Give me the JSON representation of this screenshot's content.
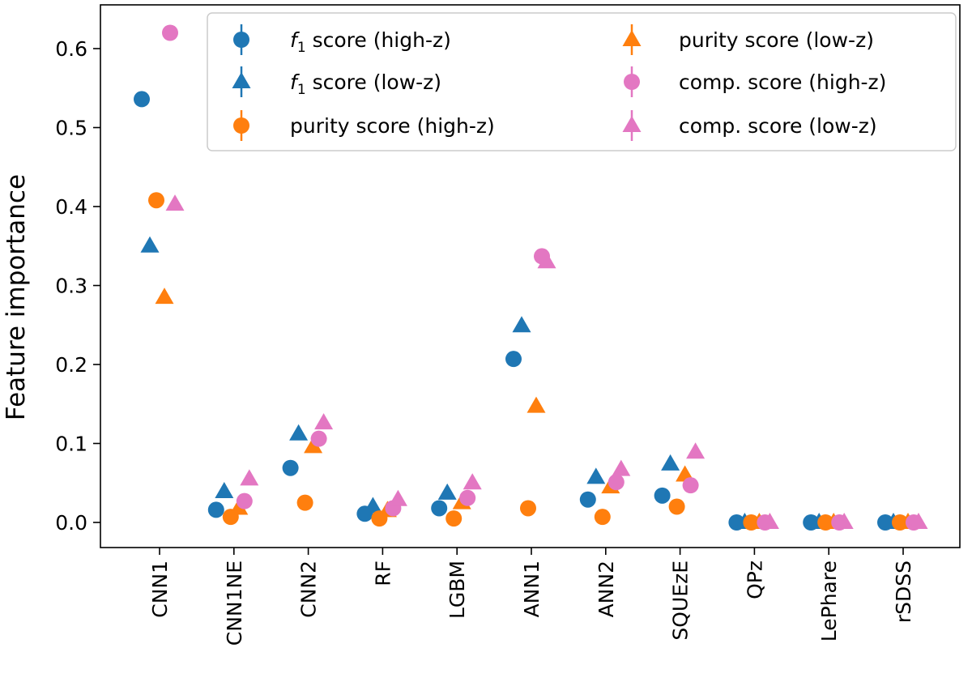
{
  "chart_data": {
    "type": "scatter",
    "title": "",
    "xlabel": "",
    "ylabel": "Feature importance",
    "categories": [
      "CNN1",
      "CNN1NE",
      "CNN2",
      "RF",
      "LGBM",
      "ANN1",
      "ANN2",
      "SQUEzE",
      "QPz",
      "LePhare",
      "rSDSS"
    ],
    "ylim": [
      -0.04,
      0.65
    ],
    "yticks": [
      "0.0",
      "0.1",
      "0.2",
      "0.3",
      "0.4",
      "0.5",
      "0.6"
    ],
    "ytick_values": [
      0.0,
      0.1,
      0.2,
      0.3,
      0.4,
      0.5,
      0.6
    ],
    "grid": false,
    "legend_position": "top-right",
    "series": [
      {
        "name": "score (high-z)",
        "prefix": "f",
        "subscript": "1",
        "marker": "circle",
        "color": "#1f77b4",
        "values": [
          0.536,
          0.016,
          0.069,
          0.011,
          0.018,
          0.207,
          0.029,
          0.034,
          0.0,
          0.0,
          0.0
        ]
      },
      {
        "name": "score (low-z)",
        "prefix": "f",
        "subscript": "1",
        "marker": "triangle",
        "color": "#1f77b4",
        "values": [
          0.35,
          0.039,
          0.112,
          0.02,
          0.037,
          0.249,
          0.057,
          0.074,
          0.0,
          0.0,
          0.0
        ]
      },
      {
        "name": "purity score (high-z)",
        "marker": "circle",
        "color": "#ff7f0e",
        "values": [
          0.408,
          0.007,
          0.025,
          0.005,
          0.005,
          0.018,
          0.007,
          0.02,
          0.0,
          0.0,
          0.0
        ]
      },
      {
        "name": "purity score (low-z)",
        "marker": "triangle",
        "color": "#ff7f0e",
        "values": [
          0.285,
          0.018,
          0.096,
          0.015,
          0.025,
          0.147,
          0.045,
          0.06,
          0.0,
          0.0,
          0.0
        ]
      },
      {
        "name": "comp. score (high-z)",
        "marker": "circle",
        "color": "#e377c2",
        "values": [
          0.62,
          0.027,
          0.106,
          0.018,
          0.031,
          0.337,
          0.051,
          0.047,
          0.0,
          0.0,
          0.0
        ]
      },
      {
        "name": "comp. score (low-z)",
        "marker": "triangle",
        "color": "#e377c2",
        "values": [
          0.403,
          0.055,
          0.126,
          0.029,
          0.05,
          0.33,
          0.067,
          0.089,
          0.0,
          0.0,
          0.0
        ]
      }
    ]
  }
}
